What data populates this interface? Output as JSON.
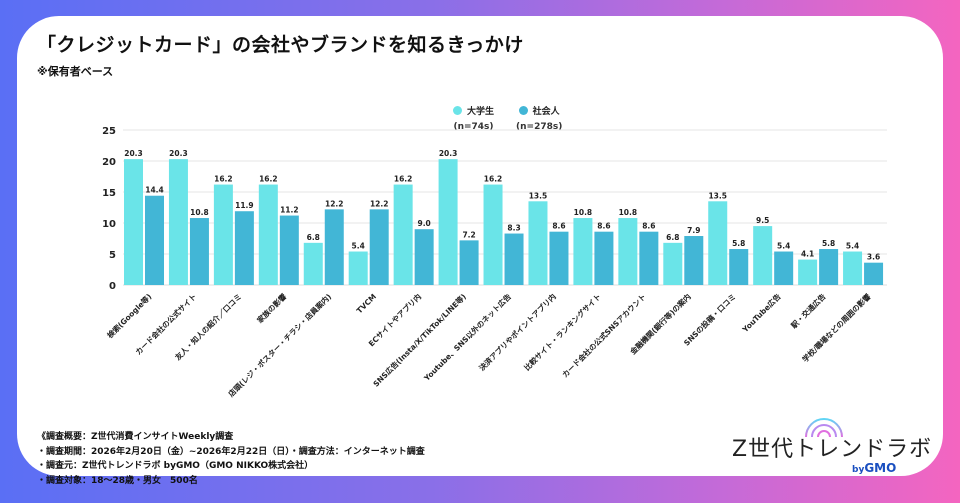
{
  "title": "「クレジットカード」の会社やブランドを知るきっかけ",
  "subtitle": "※保有者ベース",
  "legend": [
    {
      "name": "大学生",
      "n": "(n=74s)",
      "color": "#6ae4e8"
    },
    {
      "name": "社会人",
      "n": "(n=278s)",
      "color": "#42b6d6"
    }
  ],
  "chart_data": {
    "type": "bar",
    "title": "「クレジットカード」の会社やブランドを知るきっかけ",
    "xlabel": "",
    "ylabel": "",
    "ylim": [
      0,
      25
    ],
    "yticks": [
      0,
      5,
      10,
      15,
      20,
      25
    ],
    "grid": true,
    "legend_position": "top-center",
    "categories": [
      "検索(Google等)",
      "カード会社の公式サイト",
      "友人・知人の紹介／口コミ",
      "家族の影響",
      "店頭(レジ・ポスター・チラシ・店員案内)",
      "TVCM",
      "ECサイトやアプリ内",
      "SNS広告(Insta/X/TikTok/LINE等)",
      "Youtube、SNS以外のネット広告",
      "決済アプリやポイントアプリ内",
      "比較サイト・ランキングサイト",
      "カード会社の公式SNSアカウント",
      "金融機関(銀行等)の案内",
      "SNSの投稿・口コミ",
      "YouTube広告",
      "駅・交通広告",
      "学校/職場などの周囲の影響"
    ],
    "series": [
      {
        "name": "大学生",
        "n": "n=74s",
        "color": "#6ae4e8",
        "values": [
          20.3,
          20.3,
          16.2,
          16.2,
          6.8,
          5.4,
          16.2,
          20.3,
          16.2,
          13.5,
          10.8,
          10.8,
          6.8,
          13.5,
          9.5,
          4.1,
          5.4
        ]
      },
      {
        "name": "社会人",
        "n": "n=278s",
        "color": "#42b6d6",
        "values": [
          14.4,
          10.8,
          11.9,
          11.2,
          12.2,
          12.2,
          9.0,
          7.2,
          8.3,
          8.6,
          8.6,
          8.6,
          7.9,
          5.8,
          5.4,
          5.8,
          3.6
        ]
      }
    ]
  },
  "footer": {
    "lines": [
      "《調査概要：Z世代消費インサイトWeekly調査",
      "・調査期間：2026年2月20日（金）~2026年2月22日（日）・調査方法：インターネット調査",
      "・調査元：Z世代トレンドラボ byGMO（GMO NIKKO株式会社）",
      "・調査対象：18〜28歳・男女　500名"
    ]
  },
  "logo": {
    "name": "Z世代トレンドラボ",
    "by": "by",
    "brand": "GMO"
  }
}
